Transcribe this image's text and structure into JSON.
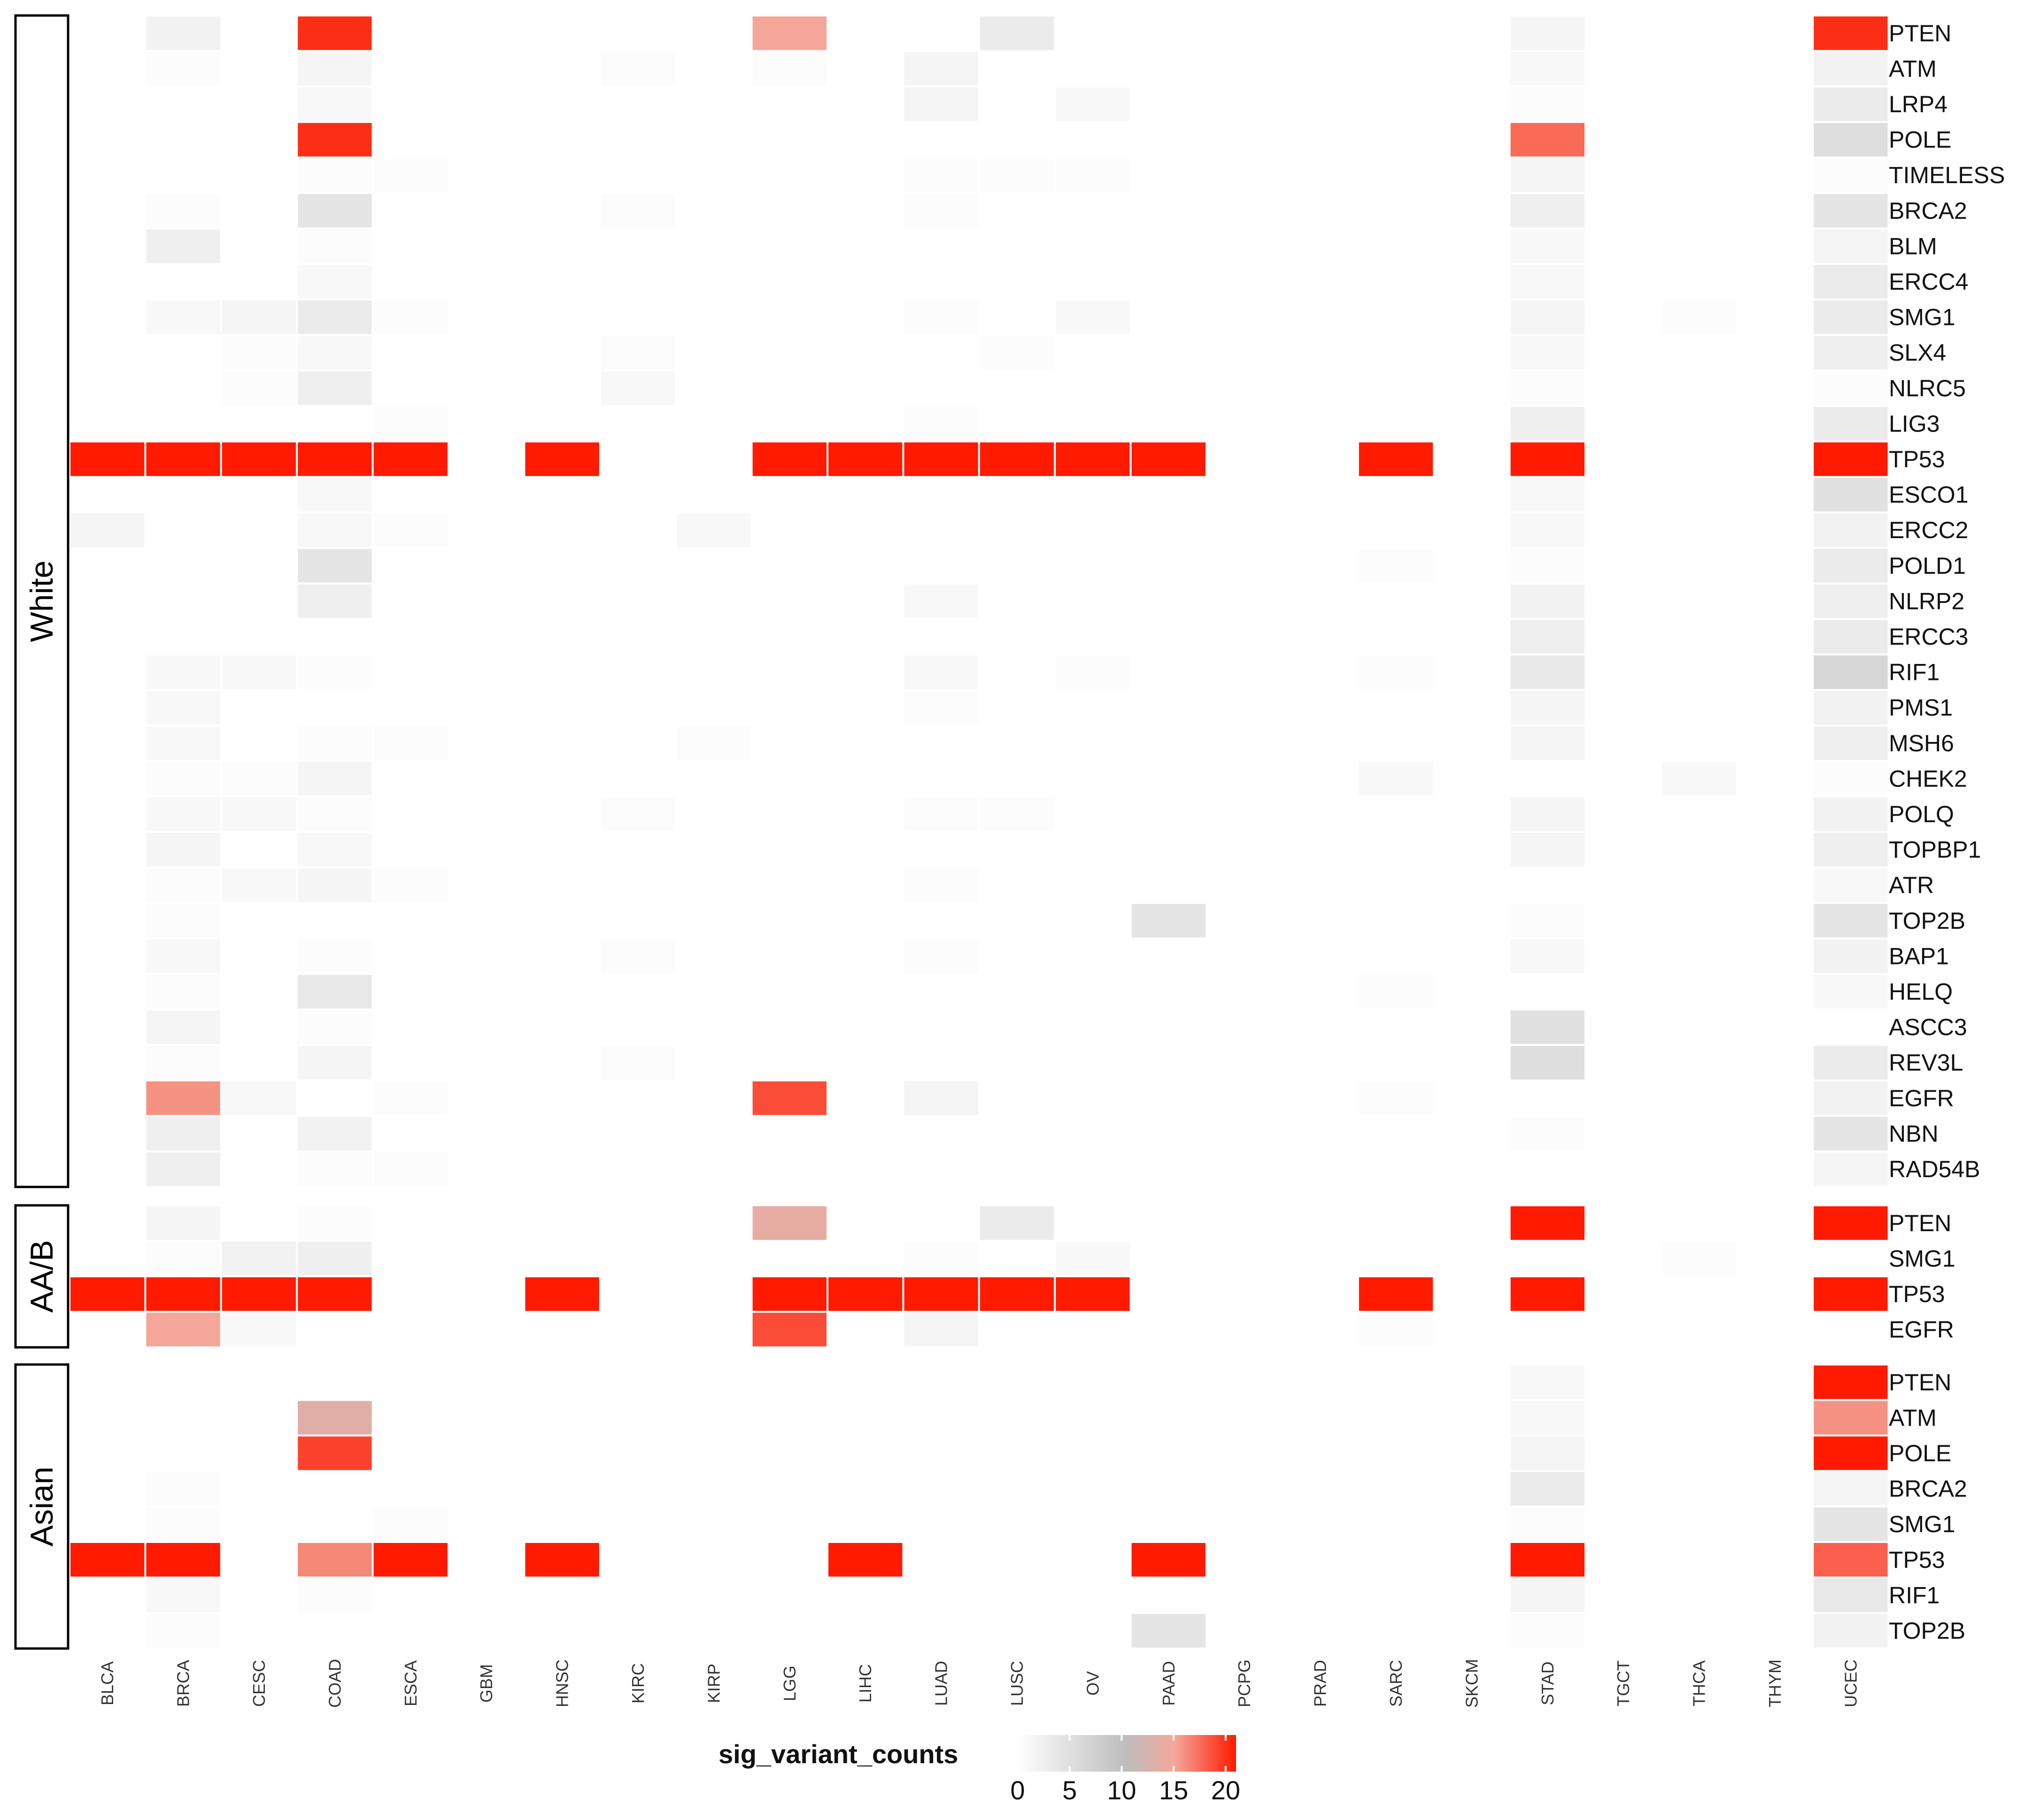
{
  "chart_data": {
    "type": "heatmap",
    "columns": [
      "BLCA",
      "BRCA",
      "CESC",
      "COAD",
      "ESCA",
      "GBM",
      "HNSC",
      "KIRC",
      "KIRP",
      "LGG",
      "LIHC",
      "LUAD",
      "LUSC",
      "OV",
      "PAAD",
      "PCPG",
      "PRAD",
      "SARC",
      "SKCM",
      "STAD",
      "TGCT",
      "THCA",
      "THYM",
      "UCEC"
    ],
    "legend": {
      "title": "sig_variant_counts",
      "ticks": [
        "0",
        "5",
        "10",
        "15",
        "20"
      ],
      "range": [
        0,
        21
      ]
    },
    "colors": {
      "low": "#ffffff",
      "mid": "#bdbdbd",
      "mid2": "#f4a699",
      "high": "#ff1a00"
    },
    "groups": [
      {
        "name": "White",
        "rows": [
          {
            "gene": "PTEN",
            "values": {
              "BRCA": 2,
              "COAD": 20,
              "LGG": 14,
              "LUSC": 3,
              "STAD": 1.5,
              "UCEC": 20
            }
          },
          {
            "gene": "ATM",
            "values": {
              "BRCA": 0.5,
              "COAD": 1.5,
              "KIRC": 0.5,
              "LGG": 0.5,
              "LUAD": 1.5,
              "STAD": 1,
              "UCEC": 2
            }
          },
          {
            "gene": "LRP4",
            "values": {
              "COAD": 1,
              "LUAD": 1.5,
              "OV": 1,
              "STAD": 0.5,
              "UCEC": 3
            }
          },
          {
            "gene": "POLE",
            "values": {
              "COAD": 20,
              "STAD": 17,
              "UCEC": 5
            }
          },
          {
            "gene": "TIMELESS",
            "values": {
              "COAD": 0.5,
              "ESCA": 0.5,
              "LUAD": 0.5,
              "LUSC": 0.5,
              "OV": 0.5,
              "STAD": 1.5,
              "UCEC": 0.5
            }
          },
          {
            "gene": "BRCA2",
            "values": {
              "BRCA": 0.5,
              "COAD": 4,
              "KIRC": 0.5,
              "LUAD": 0.5,
              "STAD": 2.5,
              "UCEC": 4
            }
          },
          {
            "gene": "BLM",
            "values": {
              "BRCA": 2.5,
              "COAD": 0.5,
              "STAD": 1,
              "UCEC": 1.5
            }
          },
          {
            "gene": "ERCC4",
            "values": {
              "COAD": 1,
              "STAD": 1,
              "UCEC": 3
            }
          },
          {
            "gene": "SMG1",
            "values": {
              "BRCA": 1,
              "CESC": 1.5,
              "COAD": 3,
              "ESCA": 0.5,
              "LUAD": 0.5,
              "OV": 1,
              "STAD": 1.5,
              "THCA": 0.5,
              "UCEC": 3
            }
          },
          {
            "gene": "SLX4",
            "values": {
              "CESC": 0.5,
              "COAD": 1,
              "KIRC": 0.5,
              "LUSC": 0.5,
              "STAD": 1,
              "UCEC": 2.5
            }
          },
          {
            "gene": "NLRC5",
            "values": {
              "CESC": 0.5,
              "COAD": 2.5,
              "KIRC": 1,
              "STAD": 0.5,
              "UCEC": 0.5
            }
          },
          {
            "gene": "LIG3",
            "values": {
              "ESCA": 0.5,
              "LUAD": 0.5,
              "STAD": 2.5,
              "UCEC": 3
            }
          },
          {
            "gene": "TP53",
            "values": {
              "BLCA": 21,
              "BRCA": 21,
              "CESC": 21,
              "COAD": 21,
              "ESCA": 21,
              "HNSC": 21,
              "LGG": 21,
              "LIHC": 21,
              "LUAD": 21,
              "LUSC": 21,
              "OV": 21,
              "PAAD": 21,
              "SARC": 21,
              "STAD": 21,
              "UCEC": 21
            }
          },
          {
            "gene": "ESCO1",
            "values": {
              "COAD": 1,
              "STAD": 1,
              "UCEC": 4.5
            }
          },
          {
            "gene": "ERCC2",
            "values": {
              "BLCA": 1.5,
              "COAD": 1,
              "ESCA": 0.5,
              "KIRP": 1,
              "STAD": 1,
              "UCEC": 2
            }
          },
          {
            "gene": "POLD1",
            "values": {
              "COAD": 4,
              "SARC": 0.5,
              "STAD": 0.5,
              "UCEC": 3
            }
          },
          {
            "gene": "NLRP2",
            "values": {
              "COAD": 2.5,
              "LUAD": 1,
              "STAD": 2,
              "UCEC": 2.5
            }
          },
          {
            "gene": "ERCC3",
            "values": {
              "STAD": 2.5,
              "UCEC": 3
            }
          },
          {
            "gene": "RIF1",
            "values": {
              "BRCA": 1,
              "CESC": 1,
              "COAD": 0.5,
              "LUAD": 1,
              "OV": 0.5,
              "SARC": 0.5,
              "STAD": 3.5,
              "UCEC": 6
            }
          },
          {
            "gene": "PMS1",
            "values": {
              "BRCA": 1,
              "LUAD": 0.5,
              "STAD": 1.5,
              "UCEC": 2
            }
          },
          {
            "gene": "MSH6",
            "values": {
              "BRCA": 1,
              "COAD": 0.5,
              "ESCA": 0.5,
              "KIRP": 0.5,
              "STAD": 1.5,
              "UCEC": 2.5
            }
          },
          {
            "gene": "CHEK2",
            "values": {
              "BRCA": 0.5,
              "CESC": 0.5,
              "COAD": 1.5,
              "SARC": 1,
              "THCA": 1,
              "UCEC": 0.5
            }
          },
          {
            "gene": "POLQ",
            "values": {
              "BRCA": 1,
              "CESC": 1,
              "COAD": 0.5,
              "KIRC": 0.5,
              "LUAD": 0.5,
              "LUSC": 0.5,
              "STAD": 1.5,
              "UCEC": 2
            }
          },
          {
            "gene": "TOPBP1",
            "values": {
              "BRCA": 1.5,
              "COAD": 1,
              "STAD": 1.5,
              "UCEC": 2.5
            }
          },
          {
            "gene": "ATR",
            "values": {
              "BRCA": 0.5,
              "CESC": 1,
              "COAD": 1.5,
              "ESCA": 0.5,
              "LUAD": 0.5,
              "UCEC": 1
            }
          },
          {
            "gene": "TOP2B",
            "values": {
              "BRCA": 0.5,
              "PAAD": 4,
              "STAD": 0.5,
              "UCEC": 4
            }
          },
          {
            "gene": "BAP1",
            "values": {
              "BRCA": 1,
              "COAD": 0.5,
              "KIRC": 0.5,
              "LUAD": 0.5,
              "STAD": 1,
              "UCEC": 2
            }
          },
          {
            "gene": "HELQ",
            "values": {
              "BRCA": 0.5,
              "COAD": 3.5,
              "SARC": 0.5,
              "UCEC": 1
            }
          },
          {
            "gene": "ASCC3",
            "values": {
              "BRCA": 1.5,
              "COAD": 0.5,
              "STAD": 4.5
            }
          },
          {
            "gene": "REV3L",
            "values": {
              "BRCA": 0.5,
              "COAD": 1.5,
              "KIRC": 0.5,
              "STAD": 5,
              "UCEC": 3
            }
          },
          {
            "gene": "EGFR",
            "values": {
              "BRCA": 15,
              "CESC": 1,
              "ESCA": 0.5,
              "LGG": 18.5,
              "LUAD": 1.5,
              "SARC": 0.5,
              "UCEC": 2
            }
          },
          {
            "gene": "NBN",
            "values": {
              "BRCA": 2.5,
              "COAD": 2,
              "STAD": 0.5,
              "UCEC": 4
            }
          },
          {
            "gene": "RAD54B",
            "values": {
              "BRCA": 2.5,
              "COAD": 0.5,
              "ESCA": 0.5,
              "UCEC": 1.5
            }
          }
        ]
      },
      {
        "name": "AA/B",
        "rows": [
          {
            "gene": "PTEN",
            "values": {
              "BRCA": 1.5,
              "COAD": 0.5,
              "LGG": 13,
              "LUSC": 3,
              "STAD": 21,
              "UCEC": 21
            }
          },
          {
            "gene": "SMG1",
            "values": {
              "BRCA": 0.5,
              "CESC": 2,
              "COAD": 2.5,
              "LUAD": 0.5,
              "OV": 1,
              "THCA": 0.5
            }
          },
          {
            "gene": "TP53",
            "values": {
              "BLCA": 21,
              "BRCA": 21,
              "CESC": 21,
              "COAD": 21,
              "HNSC": 21,
              "LGG": 21,
              "LIHC": 21,
              "LUAD": 21,
              "LUSC": 21,
              "OV": 21,
              "SARC": 21,
              "STAD": 21,
              "UCEC": 21
            }
          },
          {
            "gene": "EGFR",
            "values": {
              "BRCA": 14,
              "CESC": 1,
              "LGG": 18.5,
              "LUAD": 1.5,
              "SARC": 0.5
            }
          }
        ]
      },
      {
        "name": "Asian",
        "rows": [
          {
            "gene": "PTEN",
            "values": {
              "STAD": 1,
              "UCEC": 21
            }
          },
          {
            "gene": "ATM",
            "values": {
              "COAD": 12.5,
              "STAD": 1,
              "UCEC": 15
            }
          },
          {
            "gene": "POLE",
            "values": {
              "COAD": 19,
              "STAD": 1.5,
              "UCEC": 21
            }
          },
          {
            "gene": "BRCA2",
            "values": {
              "BRCA": 0.5,
              "STAD": 3,
              "UCEC": 1.5
            }
          },
          {
            "gene": "SMG1",
            "values": {
              "BRCA": 0.5,
              "ESCA": 0.5,
              "STAD": 0.5,
              "UCEC": 4
            }
          },
          {
            "gene": "TP53",
            "values": {
              "BLCA": 21,
              "BRCA": 21,
              "COAD": 15.5,
              "ESCA": 21,
              "HNSC": 21,
              "LIHC": 21,
              "PAAD": 21,
              "STAD": 21,
              "UCEC": 17.5
            }
          },
          {
            "gene": "RIF1",
            "values": {
              "BRCA": 1,
              "COAD": 0.5,
              "STAD": 1.5,
              "UCEC": 3.5
            }
          },
          {
            "gene": "TOP2B",
            "values": {
              "BRCA": 0.5,
              "PAAD": 4,
              "STAD": 0.5,
              "UCEC": 2
            }
          }
        ]
      }
    ]
  }
}
